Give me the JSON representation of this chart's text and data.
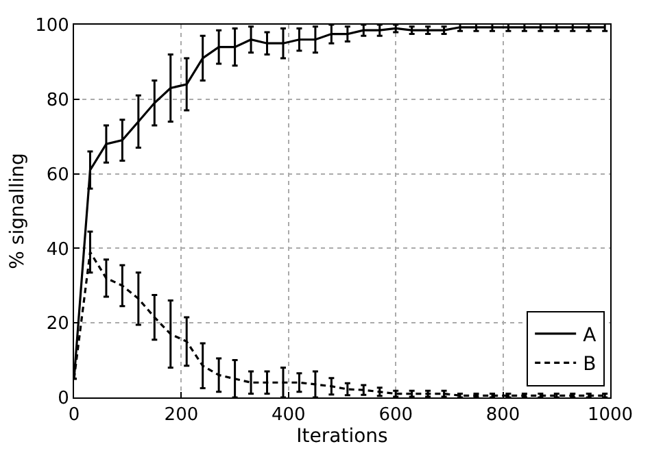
{
  "chart_data": {
    "type": "line",
    "xlabel": "Iterations",
    "ylabel": "% signalling",
    "x": [
      0,
      30,
      60,
      90,
      120,
      150,
      180,
      210,
      240,
      270,
      300,
      330,
      360,
      390,
      420,
      450,
      480,
      510,
      540,
      570,
      600,
      630,
      660,
      690,
      720,
      750,
      780,
      810,
      840,
      870,
      900,
      930,
      960,
      990
    ],
    "series": [
      {
        "name": "A",
        "color": "#000000",
        "line_style": "solid",
        "values": [
          5,
          61,
          68,
          69,
          74,
          79,
          83,
          84,
          91,
          94,
          94,
          96,
          95,
          95,
          96,
          96,
          97.5,
          97.5,
          98.5,
          98.5,
          99,
          98.5,
          98.5,
          98.5,
          99.3,
          99.3,
          99.3,
          99.3,
          99.3,
          99.3,
          99.3,
          99.3,
          99.3,
          99.3
        ],
        "errors": [
          null,
          5,
          5,
          5.5,
          7,
          6,
          9,
          7,
          6,
          4.5,
          5,
          3.5,
          3,
          4,
          3,
          3.5,
          2.5,
          2,
          1.5,
          1.5,
          1,
          1,
          1,
          1,
          1,
          1,
          1,
          1,
          1,
          1,
          1,
          1,
          1,
          1
        ]
      },
      {
        "name": "B",
        "color": "#000000",
        "line_style": "dashed",
        "values": [
          5,
          39,
          32,
          30,
          26.5,
          21.5,
          17,
          15,
          8.5,
          6,
          5,
          4,
          4,
          4,
          4,
          3.5,
          3,
          2.2,
          2,
          1.5,
          1,
          1,
          1,
          1,
          0.5,
          0.5,
          0.5,
          0.5,
          0.5,
          0.5,
          0.5,
          0.5,
          0.5,
          0.5
        ],
        "errors": [
          null,
          5.5,
          5,
          5.5,
          7,
          6,
          9,
          6.5,
          6,
          4.5,
          5,
          3,
          3,
          4,
          2.5,
          3.5,
          2.2,
          1.6,
          1.3,
          1.1,
          0.8,
          0.8,
          0.8,
          0.8,
          0.5,
          0.5,
          0.5,
          0.5,
          0.5,
          0.5,
          0.5,
          0.5,
          0.5,
          0.5
        ]
      }
    ],
    "xlim": [
      0,
      1000
    ],
    "ylim": [
      0,
      100
    ],
    "xticks": [
      0,
      200,
      400,
      600,
      800,
      1000
    ],
    "yticks": [
      0,
      20,
      40,
      60,
      80,
      100
    ],
    "grid": true,
    "legend": "bottom right",
    "marker": "none"
  }
}
